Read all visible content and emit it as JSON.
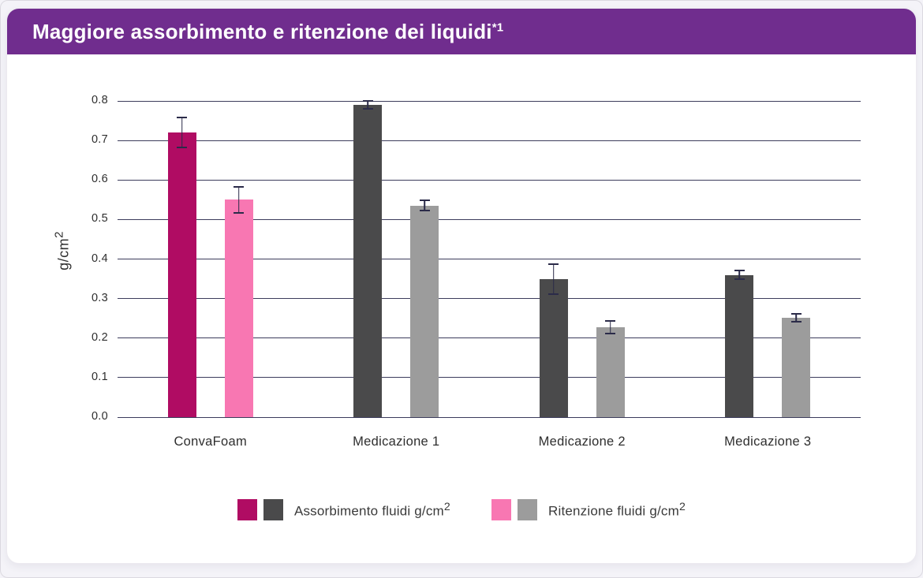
{
  "header": {
    "title": "Maggiore assorbimento e ritenzione dei liquidi",
    "title_superscript": "*1"
  },
  "colors": {
    "header_purple": "#702d8e",
    "magenta": "#b00c63",
    "pink": "#f877b2",
    "dark_gray": "#4a4a4b",
    "light_gray": "#9c9c9c",
    "gridline": "#3c3c5c",
    "error_bar": "#2b2b49",
    "card_bg": "#ffffff",
    "page_bg": "#f4f3f8"
  },
  "chart_data": {
    "type": "bar",
    "title": "Maggiore assorbimento e ritenzione dei liquidi*1",
    "ylabel": "g/cm²",
    "xlabel": "",
    "ylim": [
      0.0,
      0.8
    ],
    "ytick_step": 0.1,
    "grid": true,
    "legend_position": "bottom",
    "categories": [
      "ConvaFoam",
      "Medicazione 1",
      "Medicazione 2",
      "Medicazione 3"
    ],
    "series": [
      {
        "name": "Assorbimento fluidi g/cm²",
        "values": [
          0.72,
          0.79,
          0.35,
          0.36
        ],
        "errors": [
          0.04,
          0.012,
          0.04,
          0.013
        ],
        "bar_colors": [
          "#b00c63",
          "#4a4a4b",
          "#4a4a4b",
          "#4a4a4b"
        ]
      },
      {
        "name": "Ritenzione fluidi g/cm²",
        "values": [
          0.55,
          0.535,
          0.227,
          0.252
        ],
        "errors": [
          0.035,
          0.015,
          0.018,
          0.012
        ],
        "bar_colors": [
          "#f877b2",
          "#9c9c9c",
          "#9c9c9c",
          "#9c9c9c"
        ]
      }
    ]
  },
  "legend": {
    "items": [
      {
        "label": "Assorbimento fluidi g/cm",
        "sup": "2",
        "swatches": [
          "#b00c63",
          "#4a4a4b"
        ]
      },
      {
        "label": "Ritenzione fluidi g/cm",
        "sup": "2",
        "swatches": [
          "#f877b2",
          "#9c9c9c"
        ]
      }
    ]
  },
  "y_axis": {
    "title": "g/cm",
    "title_sup": "2",
    "tick_labels": [
      "0.0",
      "0.1",
      "0.2",
      "0.3",
      "0.4",
      "0.5",
      "0.6",
      "0.7",
      "0.8"
    ]
  }
}
